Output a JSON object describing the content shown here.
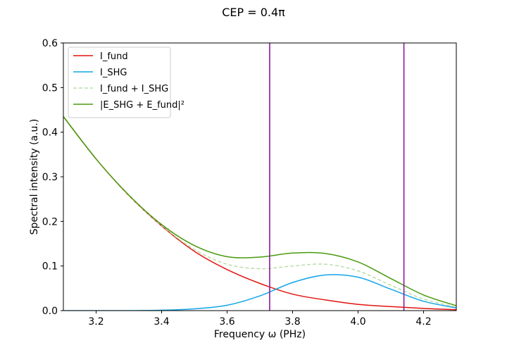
{
  "chart_data": {
    "type": "line",
    "title": "CEP = 0.4π",
    "xlabel": "Frequency ω (PHz)",
    "ylabel": "Spectral intensity (a.u.)",
    "xlim": [
      3.1,
      4.3
    ],
    "ylim": [
      0.0,
      0.6
    ],
    "xticks": [
      "3.2",
      "3.4",
      "3.6",
      "3.8",
      "4.0",
      "4.2"
    ],
    "yticks": [
      "0.0",
      "0.1",
      "0.2",
      "0.3",
      "0.4",
      "0.5",
      "0.6"
    ],
    "grid": false,
    "legend_position": "upper-left",
    "vlines": [
      {
        "x": 3.73,
        "color": "#8b1a9b"
      },
      {
        "x": 4.14,
        "color": "#8b1a9b"
      }
    ],
    "x": [
      3.1,
      3.2,
      3.3,
      3.4,
      3.5,
      3.6,
      3.7,
      3.8,
      3.9,
      4.0,
      4.1,
      4.2,
      4.3
    ],
    "series": [
      {
        "name": "I_fund",
        "color": "#e3140f",
        "style": "solid",
        "values": [
          0.435,
          0.34,
          0.258,
          0.19,
          0.133,
          0.092,
          0.061,
          0.037,
          0.024,
          0.014,
          0.009,
          0.005,
          0.002
        ]
      },
      {
        "name": "I_SHG",
        "color": "#13a6e6",
        "style": "solid",
        "values": [
          0.0,
          0.0,
          0.0,
          0.001,
          0.004,
          0.012,
          0.033,
          0.063,
          0.08,
          0.075,
          0.048,
          0.021,
          0.006
        ]
      },
      {
        "name": "I_fund + I_SHG",
        "color": "#b9deaa",
        "style": "dashed",
        "values": [
          0.435,
          0.34,
          0.258,
          0.191,
          0.137,
          0.104,
          0.094,
          0.1,
          0.104,
          0.089,
          0.057,
          0.026,
          0.008
        ]
      },
      {
        "name": "|E_SHG + E_fund|²",
        "color": "#4a9a0e",
        "style": "solid",
        "values": [
          0.435,
          0.34,
          0.259,
          0.193,
          0.146,
          0.121,
          0.12,
          0.129,
          0.128,
          0.109,
          0.072,
          0.035,
          0.011
        ]
      }
    ]
  }
}
